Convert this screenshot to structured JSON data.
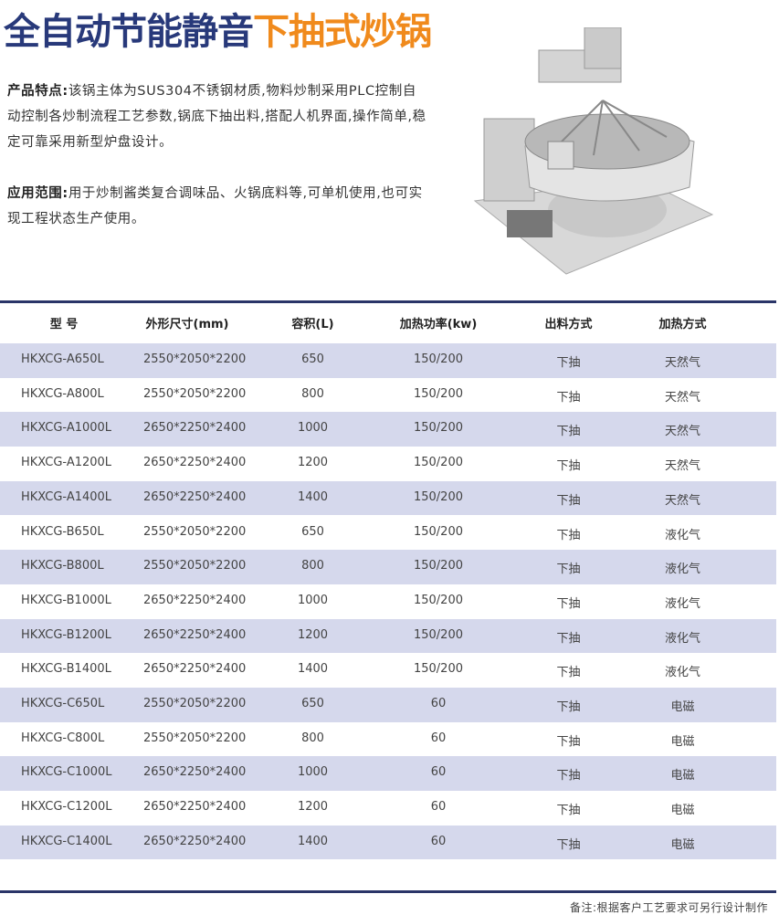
{
  "title": {
    "part1": "全自动节能静音",
    "part2": "下抽式炒锅",
    "colors": {
      "part1": "#28397a",
      "part2": "#f08a1c"
    }
  },
  "features": {
    "label": "产品特点:",
    "text": "该锅主体为SUS304不锈钢材质,物料炒制采用PLC控制自动控制各炒制流程工艺参数,锅底下抽出料,搭配人机界面,操作简单,稳定可靠采用新型炉盘设计。"
  },
  "application": {
    "label": "应用范围:",
    "text": "用于炒制酱类复合调味品、火锅底料等,可单机使用,也可实现工程状态生产使用。"
  },
  "table": {
    "headers": [
      "型 号",
      "外形尺寸(mm)",
      "容积(L)",
      "加热功率(kw)",
      "出料方式",
      "加热方式"
    ],
    "stripe_color": "#d5d8ec",
    "rows": [
      [
        "HKXCG-A650L",
        "2550*2050*2200",
        "650",
        "150/200",
        "下抽",
        "天然气"
      ],
      [
        "HKXCG-A800L",
        "2550*2050*2200",
        "800",
        "150/200",
        "下抽",
        "天然气"
      ],
      [
        "HKXCG-A1000L",
        "2650*2250*2400",
        "1000",
        "150/200",
        "下抽",
        "天然气"
      ],
      [
        "HKXCG-A1200L",
        "2650*2250*2400",
        "1200",
        "150/200",
        "下抽",
        "天然气"
      ],
      [
        "HKXCG-A1400L",
        "2650*2250*2400",
        "1400",
        "150/200",
        "下抽",
        "天然气"
      ],
      [
        "HKXCG-B650L",
        "2550*2050*2200",
        "650",
        "150/200",
        "下抽",
        "液化气"
      ],
      [
        "HKXCG-B800L",
        "2550*2050*2200",
        "800",
        "150/200",
        "下抽",
        "液化气"
      ],
      [
        "HKXCG-B1000L",
        "2650*2250*2400",
        "1000",
        "150/200",
        "下抽",
        "液化气"
      ],
      [
        "HKXCG-B1200L",
        "2650*2250*2400",
        "1200",
        "150/200",
        "下抽",
        "液化气"
      ],
      [
        "HKXCG-B1400L",
        "2650*2250*2400",
        "1400",
        "150/200",
        "下抽",
        "液化气"
      ],
      [
        "HKXCG-C650L",
        "2550*2050*2200",
        "650",
        "60",
        "下抽",
        "电磁"
      ],
      [
        "HKXCG-C800L",
        "2550*2050*2200",
        "800",
        "60",
        "下抽",
        "电磁"
      ],
      [
        "HKXCG-C1000L",
        "2650*2250*2400",
        "1000",
        "60",
        "下抽",
        "电磁"
      ],
      [
        "HKXCG-C1200L",
        "2650*2250*2400",
        "1200",
        "60",
        "下抽",
        "电磁"
      ],
      [
        "HKXCG-C1400L",
        "2650*2250*2400",
        "1400",
        "60",
        "下抽",
        "电磁"
      ]
    ]
  },
  "note": "备注:根据客户工艺要求可另行设计制作"
}
